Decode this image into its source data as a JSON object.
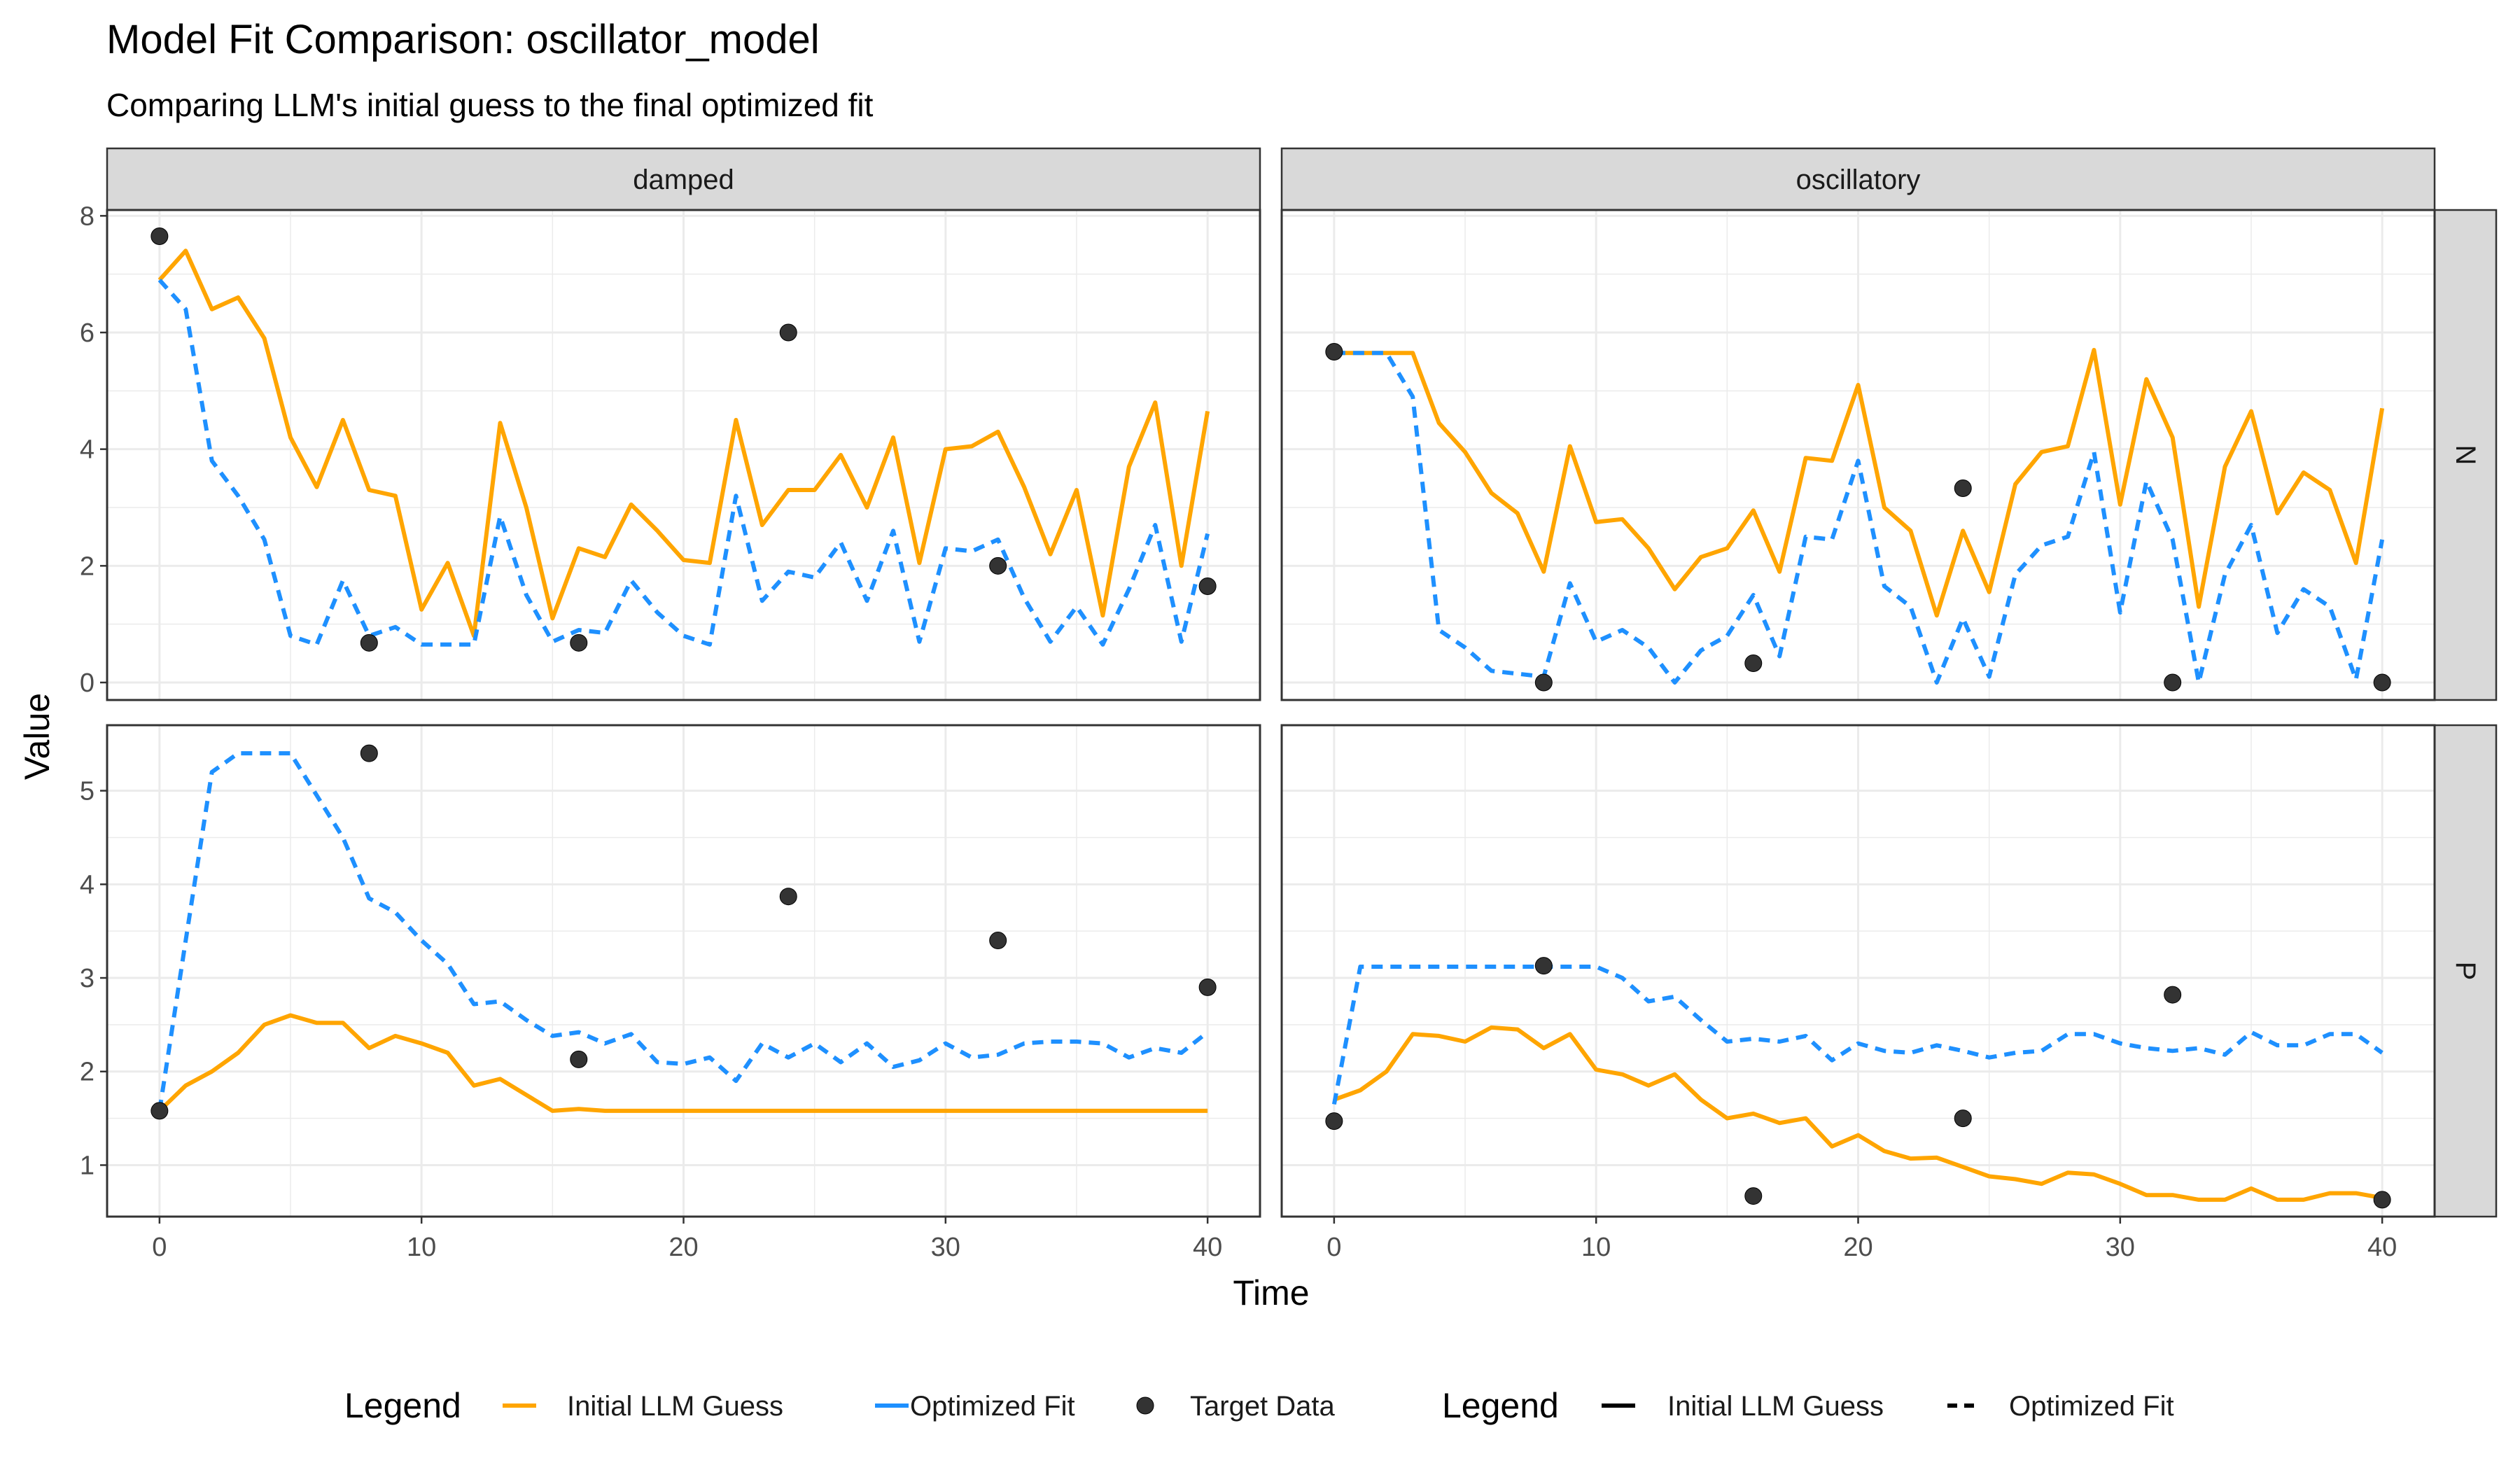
{
  "title": "Model Fit Comparison: oscillator_model",
  "subtitle": "Comparing LLM's initial guess to the final optimized fit",
  "colors": {
    "initial": "#FFA500",
    "optimized": "#1E90FF",
    "target": "#333333",
    "strip_fill": "#D9D9D9",
    "grid": "#EBEBEB"
  },
  "chart_data": {
    "type": "line",
    "xlabel": "Time",
    "ylabel": "Value",
    "facet_columns": [
      "damped",
      "oscillatory"
    ],
    "facet_rows": [
      "N",
      "P"
    ],
    "x_ticks": [
      0,
      10,
      20,
      30,
      40
    ],
    "xlim": [
      -2,
      42
    ],
    "rows": {
      "N": {
        "ylim": [
          -0.3,
          8.1
        ],
        "y_ticks": [
          0,
          2,
          4,
          6,
          8
        ]
      },
      "P": {
        "ylim": [
          0.45,
          5.7
        ],
        "y_ticks": [
          1,
          2,
          3,
          4,
          5
        ]
      }
    },
    "panels": [
      {
        "column": "damped",
        "row": "N",
        "initial": [
          6.9,
          7.4,
          6.4,
          6.6,
          5.9,
          4.2,
          3.35,
          4.5,
          3.3,
          3.2,
          1.25,
          2.05,
          0.8,
          4.45,
          3.0,
          1.1,
          2.3,
          2.15,
          3.05,
          2.6,
          2.1,
          2.05,
          4.5,
          2.7,
          3.3,
          3.3,
          3.9,
          3.0,
          4.2,
          2.05,
          4.0,
          4.05,
          4.3,
          3.35,
          2.2,
          3.3,
          1.15,
          3.7,
          4.8,
          2.0,
          4.65
        ],
        "optimized": [
          6.9,
          6.4,
          3.8,
          3.2,
          2.45,
          0.8,
          0.65,
          1.75,
          0.8,
          0.95,
          0.65,
          0.65,
          0.65,
          2.85,
          1.5,
          0.7,
          0.9,
          0.85,
          1.75,
          1.2,
          0.8,
          0.65,
          3.2,
          1.4,
          1.9,
          1.8,
          2.4,
          1.4,
          2.6,
          0.7,
          2.3,
          2.25,
          2.45,
          1.45,
          0.7,
          1.3,
          0.65,
          1.6,
          2.7,
          0.7,
          2.55
        ],
        "target": [
          [
            0,
            7.65
          ],
          [
            8,
            0.68
          ],
          [
            16,
            0.68
          ],
          [
            24,
            6.0
          ],
          [
            32,
            2.0
          ],
          [
            40,
            1.65
          ]
        ]
      },
      {
        "column": "oscillatory",
        "row": "N",
        "initial": [
          5.65,
          5.65,
          5.65,
          5.65,
          4.45,
          3.95,
          3.25,
          2.9,
          1.9,
          4.05,
          2.75,
          2.8,
          2.3,
          1.6,
          2.15,
          2.3,
          2.95,
          1.9,
          3.85,
          3.8,
          5.1,
          3.0,
          2.6,
          1.15,
          2.6,
          1.55,
          3.4,
          3.95,
          4.05,
          5.7,
          3.05,
          5.2,
          4.2,
          1.3,
          3.7,
          4.65,
          2.9,
          3.6,
          3.3,
          2.05,
          4.7
        ],
        "optimized": [
          5.65,
          5.65,
          5.65,
          4.9,
          0.9,
          0.6,
          0.2,
          0.15,
          0.1,
          1.7,
          0.7,
          0.9,
          0.6,
          0.0,
          0.55,
          0.8,
          1.5,
          0.45,
          2.5,
          2.45,
          3.8,
          1.65,
          1.3,
          0.0,
          1.1,
          0.1,
          1.85,
          2.35,
          2.5,
          3.95,
          1.2,
          3.45,
          2.45,
          0.0,
          1.85,
          2.7,
          0.85,
          1.6,
          1.3,
          0.05,
          2.45
        ],
        "target": [
          [
            0,
            5.67
          ],
          [
            8,
            0.0
          ],
          [
            16,
            0.33
          ],
          [
            24,
            3.33
          ],
          [
            32,
            0.0
          ],
          [
            40,
            0.0
          ]
        ]
      },
      {
        "column": "damped",
        "row": "P",
        "initial": [
          1.58,
          1.85,
          2.0,
          2.2,
          2.5,
          2.6,
          2.52,
          2.52,
          2.25,
          2.38,
          2.3,
          2.2,
          1.85,
          1.92,
          1.75,
          1.58,
          1.6,
          1.58,
          1.58,
          1.58,
          1.58,
          1.58,
          1.58,
          1.58,
          1.58,
          1.58,
          1.58,
          1.58,
          1.58,
          1.58,
          1.58,
          1.58,
          1.58,
          1.58,
          1.58,
          1.58,
          1.58,
          1.58,
          1.58,
          1.58,
          1.58
        ],
        "optimized": [
          1.58,
          3.4,
          5.2,
          5.4,
          5.4,
          5.4,
          4.95,
          4.5,
          3.85,
          3.7,
          3.4,
          3.15,
          2.72,
          2.75,
          2.55,
          2.38,
          2.42,
          2.3,
          2.4,
          2.1,
          2.08,
          2.15,
          1.9,
          2.3,
          2.15,
          2.3,
          2.1,
          2.3,
          2.05,
          2.12,
          2.3,
          2.15,
          2.18,
          2.3,
          2.32,
          2.32,
          2.3,
          2.15,
          2.25,
          2.2,
          2.42
        ],
        "target": [
          [
            0,
            1.58
          ],
          [
            8,
            5.4
          ],
          [
            16,
            2.13
          ],
          [
            24,
            3.87
          ],
          [
            32,
            3.4
          ],
          [
            40,
            2.9
          ]
        ]
      },
      {
        "column": "oscillatory",
        "row": "P",
        "initial": [
          1.7,
          1.8,
          2.0,
          2.4,
          2.38,
          2.32,
          2.47,
          2.45,
          2.25,
          2.4,
          2.02,
          1.97,
          1.85,
          1.97,
          1.7,
          1.5,
          1.55,
          1.45,
          1.5,
          1.2,
          1.32,
          1.15,
          1.07,
          1.08,
          0.98,
          0.88,
          0.85,
          0.8,
          0.92,
          0.9,
          0.8,
          0.68,
          0.68,
          0.63,
          0.63,
          0.75,
          0.63,
          0.63,
          0.7,
          0.7,
          0.65
        ],
        "optimized": [
          1.65,
          3.12,
          3.12,
          3.12,
          3.12,
          3.12,
          3.12,
          3.12,
          3.12,
          3.12,
          3.12,
          3.0,
          2.75,
          2.8,
          2.55,
          2.32,
          2.35,
          2.32,
          2.38,
          2.12,
          2.3,
          2.22,
          2.2,
          2.28,
          2.22,
          2.15,
          2.2,
          2.22,
          2.4,
          2.4,
          2.3,
          2.25,
          2.22,
          2.25,
          2.18,
          2.42,
          2.28,
          2.28,
          2.4,
          2.4,
          2.2
        ],
        "target": [
          [
            0,
            1.47
          ],
          [
            8,
            3.13
          ],
          [
            16,
            0.67
          ],
          [
            24,
            1.5
          ],
          [
            32,
            2.82
          ],
          [
            40,
            0.63
          ]
        ]
      }
    ],
    "legends": [
      {
        "title": "Legend",
        "entries": [
          {
            "label": "Initial LLM Guess",
            "kind": "colour-line",
            "color": "#FFA500"
          },
          {
            "label": "Optimized Fit",
            "kind": "colour-line",
            "color": "#1E90FF"
          },
          {
            "label": "Target Data",
            "kind": "point",
            "color": "#333333"
          }
        ]
      },
      {
        "title": "Legend",
        "entries": [
          {
            "label": "Initial LLM Guess",
            "kind": "solid"
          },
          {
            "label": "Optimized Fit",
            "kind": "dashed"
          }
        ]
      }
    ],
    "legend_position": "bottom",
    "grid": true
  }
}
